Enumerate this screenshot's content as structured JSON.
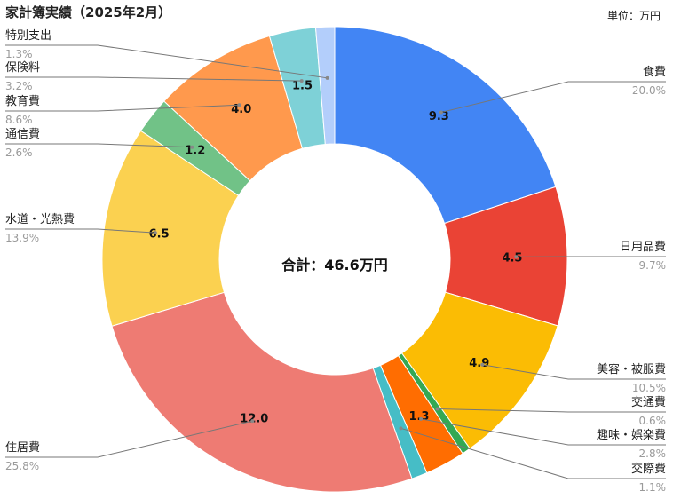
{
  "chart_data": {
    "type": "pie",
    "variant": "donut",
    "title": "家計簿実績（2025年2月）",
    "unit_note": "単位：万円",
    "center_text": "合計：46.6万円",
    "slices": [
      {
        "label": "食費",
        "value": 9.3,
        "value_text": "9.3",
        "percent": "20.0%",
        "color": "#4285f4"
      },
      {
        "label": "日用品費",
        "value": 4.5,
        "value_text": "4.5",
        "percent": "9.7%",
        "color": "#ea4335"
      },
      {
        "label": "美容・被服費",
        "value": 4.9,
        "value_text": "4.9",
        "percent": "10.5%",
        "color": "#fbbc04"
      },
      {
        "label": "交通費",
        "value": 0.28,
        "value_text": "",
        "percent": "0.6%",
        "color": "#34a853"
      },
      {
        "label": "趣味・娯楽費",
        "value": 1.3,
        "value_text": "1.3",
        "percent": "2.8%",
        "color": "#ff6d01"
      },
      {
        "label": "交際費",
        "value": 0.51,
        "value_text": "",
        "percent": "1.1%",
        "color": "#46bdc6"
      },
      {
        "label": "住居費",
        "value": 12.0,
        "value_text": "12.0",
        "percent": "25.8%",
        "color": "#ee7b73"
      },
      {
        "label": "水道・光熱費",
        "value": 6.5,
        "value_text": "6.5",
        "percent": "13.9%",
        "color": "#fbd150"
      },
      {
        "label": "通信費",
        "value": 1.2,
        "value_text": "1.2",
        "percent": "2.6%",
        "color": "#71c287"
      },
      {
        "label": "教育費",
        "value": 4.0,
        "value_text": "4.0",
        "percent": "8.6%",
        "color": "#ff994d"
      },
      {
        "label": "保険料",
        "value": 1.5,
        "value_text": "1.5",
        "percent": "3.2%",
        "color": "#7ed1d7"
      },
      {
        "label": "特別支出",
        "value": 0.61,
        "value_text": "",
        "percent": "1.3%",
        "color": "#b3cefb"
      }
    ]
  }
}
